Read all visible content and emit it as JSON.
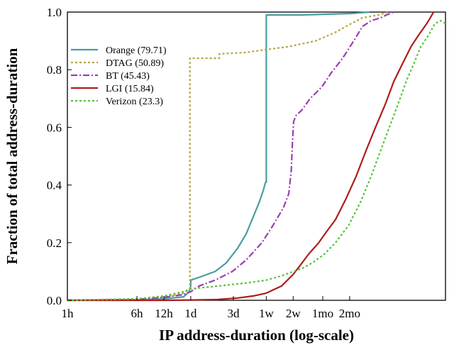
{
  "chart_data": {
    "type": "line",
    "title": "",
    "xlabel": "IP address-duration (log-scale)",
    "ylabel": "Fraction of total address-duration",
    "x_scale": "log",
    "x_unit": "hours",
    "x_ticks": [
      {
        "value": 1,
        "label": "1h"
      },
      {
        "value": 6,
        "label": "6h"
      },
      {
        "value": 12,
        "label": "12h"
      },
      {
        "value": 24,
        "label": "1d"
      },
      {
        "value": 72,
        "label": "3d"
      },
      {
        "value": 168,
        "label": "1w"
      },
      {
        "value": 336,
        "label": "2w"
      },
      {
        "value": 720,
        "label": "1mo"
      },
      {
        "value": 1440,
        "label": "2mo"
      }
    ],
    "xlim": [
      1,
      17000
    ],
    "ylim": [
      0,
      1
    ],
    "y_ticks": [
      {
        "value": 0,
        "label": "0.0"
      },
      {
        "value": 0.2,
        "label": "0.2"
      },
      {
        "value": 0.4,
        "label": "0.4"
      },
      {
        "value": 0.6,
        "label": "0.6"
      },
      {
        "value": 0.8,
        "label": "0.8"
      },
      {
        "value": 1,
        "label": "1.0"
      }
    ],
    "grid": false,
    "legend_position": "top-left",
    "series": [
      {
        "name": "Orange (79.71)",
        "color": "#4a9e9e",
        "dash": "solid",
        "x": [
          1,
          6,
          12,
          20,
          23,
          24,
          24,
          30,
          45,
          60,
          80,
          100,
          120,
          140,
          155,
          165,
          168,
          168,
          400,
          1500,
          2400
        ],
        "y": [
          0,
          0.002,
          0.005,
          0.012,
          0.03,
          0.05,
          0.07,
          0.08,
          0.1,
          0.13,
          0.18,
          0.23,
          0.29,
          0.34,
          0.38,
          0.41,
          0.41,
          0.99,
          0.99,
          0.995,
          1.0
        ]
      },
      {
        "name": "DTAG (50.89)",
        "color": "#b5a642",
        "dash": "dotted",
        "x": [
          1,
          6,
          12,
          20,
          23.5,
          23.5,
          50,
          50,
          100,
          168,
          300,
          600,
          1000,
          1500,
          2000,
          3000,
          4000
        ],
        "y": [
          0,
          0.005,
          0.01,
          0.025,
          0.04,
          0.84,
          0.84,
          0.855,
          0.86,
          0.87,
          0.88,
          0.9,
          0.93,
          0.96,
          0.98,
          0.99,
          1.0
        ]
      },
      {
        "name": "BT (45.43)",
        "color": "#9b3fb5",
        "dash": "dashdot",
        "x": [
          1,
          6,
          12,
          20,
          24,
          30,
          45,
          70,
          100,
          150,
          200,
          260,
          300,
          320,
          330,
          340,
          360,
          420,
          520,
          700,
          900,
          1200,
          1600,
          2000,
          2500,
          3200,
          3700,
          4500
        ],
        "y": [
          0,
          0.003,
          0.01,
          0.02,
          0.03,
          0.05,
          0.07,
          0.1,
          0.14,
          0.2,
          0.26,
          0.32,
          0.37,
          0.45,
          0.55,
          0.62,
          0.64,
          0.66,
          0.7,
          0.74,
          0.79,
          0.84,
          0.9,
          0.95,
          0.97,
          0.98,
          0.99,
          1.0
        ]
      },
      {
        "name": "LGI (15.84)",
        "color": "#b01c1c",
        "dash": "solid",
        "x": [
          1,
          12,
          24,
          48,
          80,
          120,
          168,
          250,
          336,
          400,
          500,
          650,
          800,
          1000,
          1300,
          1700,
          2200,
          2800,
          3600,
          4500,
          5600,
          7000,
          8500,
          10500,
          11500,
          12500
        ],
        "y": [
          0,
          0,
          0.001,
          0.003,
          0.008,
          0.015,
          0.025,
          0.05,
          0.09,
          0.12,
          0.16,
          0.2,
          0.24,
          0.28,
          0.35,
          0.43,
          0.52,
          0.6,
          0.68,
          0.76,
          0.82,
          0.88,
          0.92,
          0.96,
          0.98,
          1.0
        ]
      },
      {
        "name": "Verizon (23.3)",
        "color": "#55c43c",
        "dash": "dotted",
        "x": [
          1,
          6,
          12,
          20,
          24,
          50,
          100,
          168,
          250,
          336,
          420,
          550,
          750,
          1000,
          1400,
          1900,
          2500,
          3200,
          4000,
          5000,
          6200,
          7500,
          9000,
          11000,
          13000,
          15000,
          17000
        ],
        "y": [
          0,
          0.005,
          0.015,
          0.03,
          0.04,
          0.05,
          0.06,
          0.07,
          0.085,
          0.1,
          0.11,
          0.13,
          0.16,
          0.2,
          0.26,
          0.34,
          0.43,
          0.52,
          0.6,
          0.68,
          0.76,
          0.82,
          0.88,
          0.92,
          0.96,
          0.97,
          0.96
        ]
      }
    ]
  }
}
